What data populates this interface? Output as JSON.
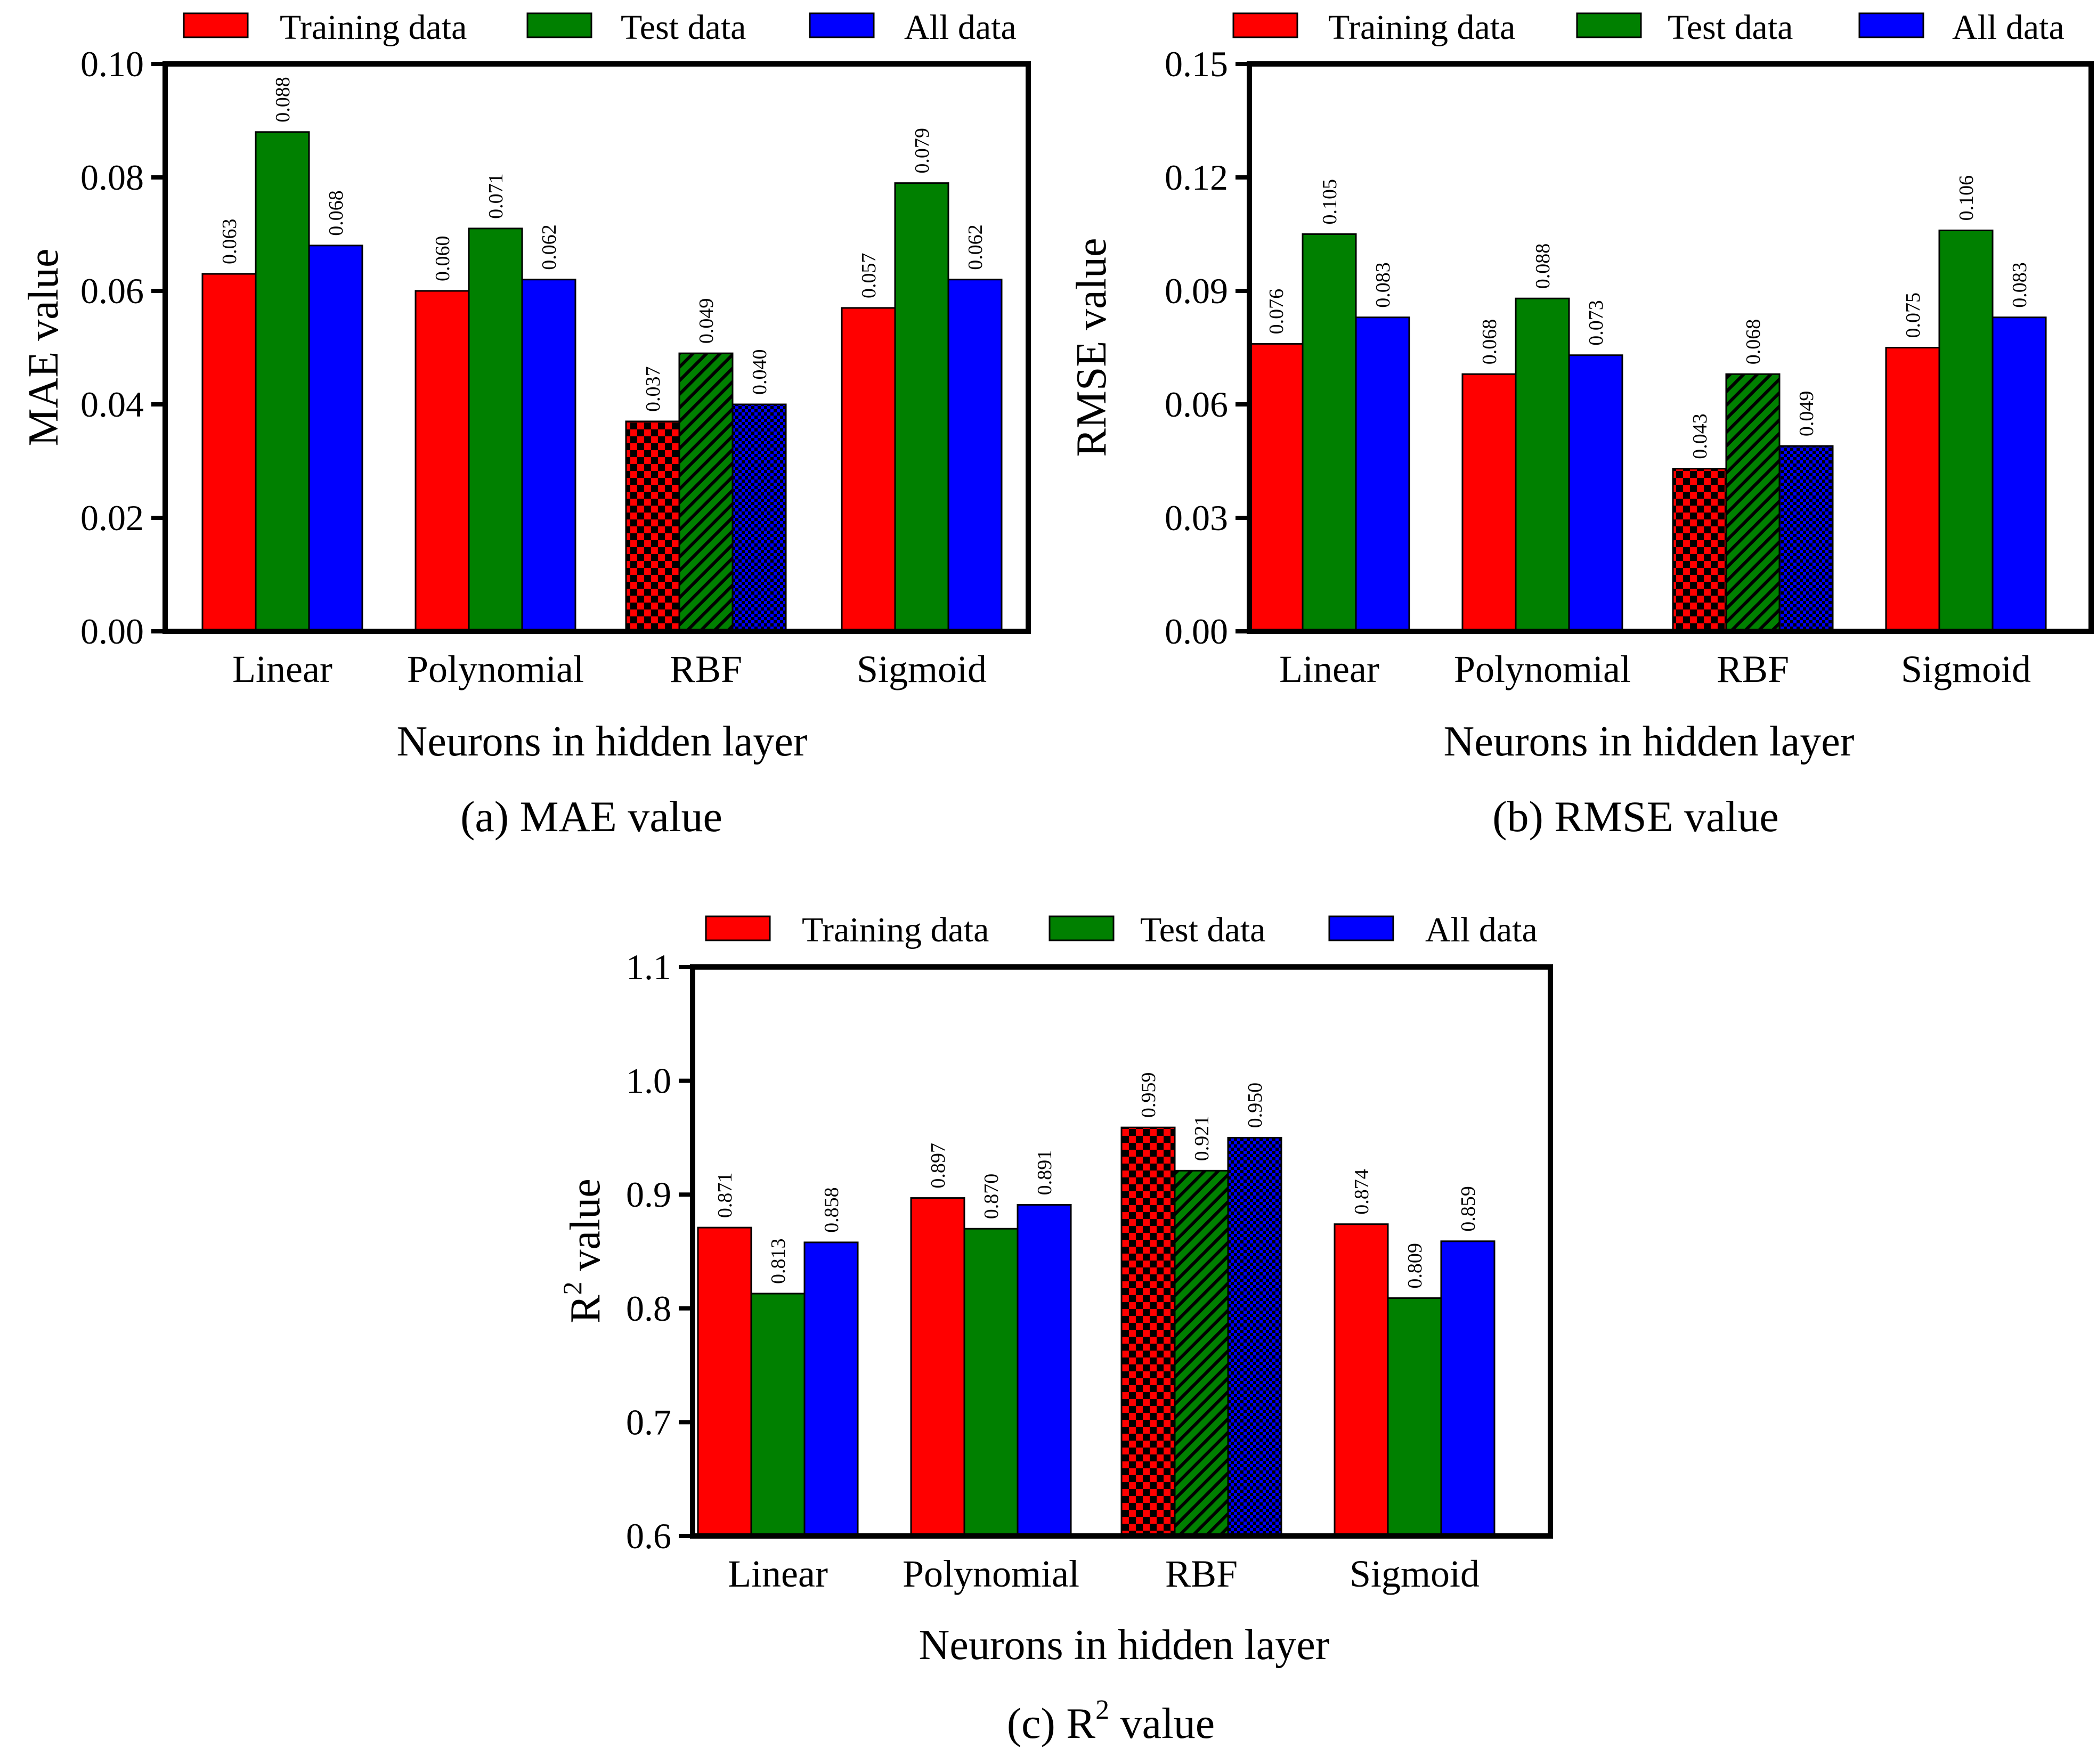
{
  "chart_data": [
    {
      "type": "bar",
      "panel": "a",
      "caption": "(a) MAE value",
      "xlabel": "Neurons in hidden layer",
      "ylabel": "MAE value",
      "categories": [
        "Linear",
        "Polynomial",
        "RBF",
        "Sigmoid"
      ],
      "ylim": [
        0,
        0.1
      ],
      "yticks": [
        "0.00",
        "0.02",
        "0.04",
        "0.06",
        "0.08",
        "0.10"
      ],
      "legend": [
        "Training data",
        "Test data",
        "All data"
      ],
      "legend_position": "top",
      "highlighted_category": "RBF",
      "series": [
        {
          "name": "Training data",
          "color": "#ff0000",
          "values": [
            0.063,
            0.06,
            0.037,
            0.057
          ],
          "labels": [
            "0.063",
            "0.060",
            "0.037",
            "0.057"
          ]
        },
        {
          "name": "Test data",
          "color": "#008000",
          "values": [
            0.088,
            0.071,
            0.049,
            0.079
          ],
          "labels": [
            "0.088",
            "0.071",
            "0.049",
            "0.079"
          ]
        },
        {
          "name": "All data",
          "color": "#0000ff",
          "values": [
            0.068,
            0.062,
            0.04,
            0.062
          ],
          "labels": [
            "0.068",
            "0.062",
            "0.040",
            "0.062"
          ]
        }
      ]
    },
    {
      "type": "bar",
      "panel": "b",
      "caption": "(b) RMSE value",
      "xlabel": "Neurons in hidden layer",
      "ylabel": "RMSE value",
      "categories": [
        "Linear",
        "Polynomial",
        "RBF",
        "Sigmoid"
      ],
      "ylim": [
        0,
        0.15
      ],
      "yticks": [
        "0.00",
        "0.03",
        "0.06",
        "0.09",
        "0.12",
        "0.15"
      ],
      "legend": [
        "Training data",
        "Test data",
        "All data"
      ],
      "legend_position": "top",
      "highlighted_category": "RBF",
      "series": [
        {
          "name": "Training data",
          "color": "#ff0000",
          "values": [
            0.076,
            0.068,
            0.043,
            0.075
          ],
          "labels": [
            "0.076",
            "0.068",
            "0.043",
            "0.075"
          ]
        },
        {
          "name": "Test data",
          "color": "#008000",
          "values": [
            0.105,
            0.088,
            0.068,
            0.106
          ],
          "labels": [
            "0.105",
            "0.088",
            "0.068",
            "0.106"
          ]
        },
        {
          "name": "All data",
          "color": "#0000ff",
          "values": [
            0.083,
            0.073,
            0.049,
            0.083
          ],
          "labels": [
            "0.083",
            "0.073",
            "0.049",
            "0.083"
          ]
        }
      ]
    },
    {
      "type": "bar",
      "panel": "c",
      "caption": "(c) R2 value",
      "xlabel": "Neurons in hidden layer",
      "ylabel": "R2 value",
      "categories": [
        "Linear",
        "Polynomial",
        "RBF",
        "Sigmoid"
      ],
      "ylim": [
        0.6,
        1.1
      ],
      "yticks": [
        "0.6",
        "0.7",
        "0.8",
        "0.9",
        "1.0",
        "1.1"
      ],
      "legend": [
        "Training data",
        "Test data",
        "All data"
      ],
      "legend_position": "top",
      "highlighted_category": "RBF",
      "series": [
        {
          "name": "Training data",
          "color": "#ff0000",
          "values": [
            0.871,
            0.897,
            0.959,
            0.874
          ],
          "labels": [
            "0.871",
            "0.897",
            "0.959",
            "0.874"
          ]
        },
        {
          "name": "Test data",
          "color": "#008000",
          "values": [
            0.813,
            0.87,
            0.921,
            0.809
          ],
          "labels": [
            "0.813",
            "0.870",
            "0.921",
            "0.809"
          ]
        },
        {
          "name": "All data",
          "color": "#0000ff",
          "values": [
            0.858,
            0.891,
            0.95,
            0.859
          ],
          "labels": [
            "0.858",
            "0.891",
            "0.950",
            "0.859"
          ]
        }
      ]
    }
  ]
}
